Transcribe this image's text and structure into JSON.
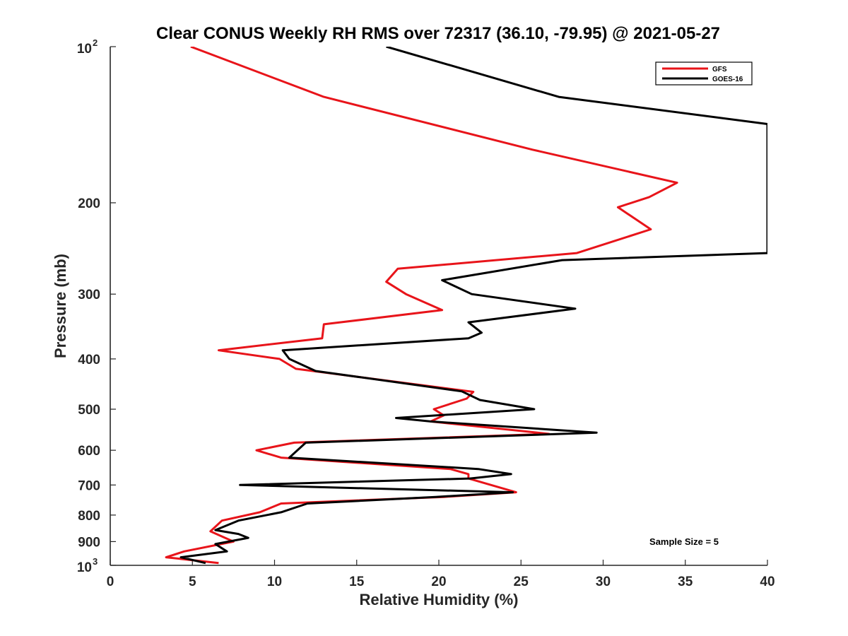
{
  "chart_data": {
    "type": "line",
    "title": "Clear CONUS Weekly RH RMS over 72317 (36.10, -79.95) @ 2021-05-27",
    "xlabel": "Relative Humidity (%)",
    "ylabel": "Pressure (mb)",
    "xlim": [
      0,
      40
    ],
    "ylim": [
      100,
      1000
    ],
    "yscale": "log",
    "y_reversed": true,
    "x_ticks": [
      0,
      5,
      10,
      15,
      20,
      25,
      30,
      35,
      40
    ],
    "x_tick_labels": [
      "0",
      "5",
      "10",
      "15",
      "20",
      "25",
      "30",
      "35",
      "40"
    ],
    "y_ticks": [
      200,
      300,
      400,
      500,
      600,
      700,
      800,
      900
    ],
    "y_tick_labels": [
      "200",
      "300",
      "400",
      "500",
      "600",
      "700",
      "800",
      "900"
    ],
    "y_ticks_power": [
      {
        "value": 100,
        "base": "10",
        "exp": "2"
      },
      {
        "value": 1000,
        "base": "10",
        "exp": "3"
      }
    ],
    "grid": false,
    "legend_position": "top-right",
    "annotation": "Sample Size = 5",
    "series": [
      {
        "name": "GFS",
        "color": "#e8141a",
        "points": [
          [
            4.9,
            100
          ],
          [
            13.0,
            125
          ],
          [
            25.7,
            158
          ],
          [
            34.5,
            183
          ],
          [
            32.8,
            195
          ],
          [
            30.9,
            204
          ],
          [
            32.9,
            225
          ],
          [
            28.4,
            250
          ],
          [
            17.5,
            268
          ],
          [
            16.8,
            284
          ],
          [
            18.0,
            300
          ],
          [
            20.2,
            322
          ],
          [
            13.0,
            343
          ],
          [
            12.9,
            365
          ],
          [
            6.6,
            385
          ],
          [
            10.3,
            400
          ],
          [
            11.3,
            418
          ],
          [
            22.1,
            463
          ],
          [
            21.7,
            477
          ],
          [
            19.7,
            500
          ],
          [
            20.3,
            514
          ],
          [
            19.5,
            528
          ],
          [
            26.7,
            558
          ],
          [
            11.2,
            580
          ],
          [
            8.9,
            600
          ],
          [
            10.4,
            620
          ],
          [
            20.7,
            652
          ],
          [
            21.8,
            667
          ],
          [
            21.8,
            680
          ],
          [
            24.7,
            723
          ],
          [
            20.3,
            738
          ],
          [
            10.4,
            760
          ],
          [
            9.1,
            790
          ],
          [
            6.8,
            820
          ],
          [
            6.1,
            860
          ],
          [
            7.5,
            900
          ],
          [
            4.5,
            940
          ],
          [
            3.4,
            965
          ],
          [
            6.6,
            990
          ]
        ]
      },
      {
        "name": "GOES-16",
        "color": "#000000",
        "points": [
          [
            16.8,
            100
          ],
          [
            27.3,
            125
          ],
          [
            40.0,
            141
          ],
          [
            40.0,
            250
          ],
          [
            27.5,
            258
          ],
          [
            20.2,
            282
          ],
          [
            22.0,
            300
          ],
          [
            28.3,
            320
          ],
          [
            21.8,
            340
          ],
          [
            22.6,
            356
          ],
          [
            21.8,
            365
          ],
          [
            10.5,
            385
          ],
          [
            10.9,
            400
          ],
          [
            12.5,
            422
          ],
          [
            21.4,
            462
          ],
          [
            22.5,
            480
          ],
          [
            25.8,
            500
          ],
          [
            17.4,
            520
          ],
          [
            19.5,
            528
          ],
          [
            29.6,
            555
          ],
          [
            11.9,
            580
          ],
          [
            10.9,
            620
          ],
          [
            22.4,
            652
          ],
          [
            24.4,
            667
          ],
          [
            21.9,
            680
          ],
          [
            7.9,
            700
          ],
          [
            24.5,
            723
          ],
          [
            19.8,
            738
          ],
          [
            12.0,
            760
          ],
          [
            10.4,
            790
          ],
          [
            7.8,
            820
          ],
          [
            6.4,
            855
          ],
          [
            7.8,
            870
          ],
          [
            8.4,
            885
          ],
          [
            6.4,
            910
          ],
          [
            7.1,
            940
          ],
          [
            4.3,
            965
          ],
          [
            5.8,
            990
          ]
        ]
      }
    ]
  }
}
